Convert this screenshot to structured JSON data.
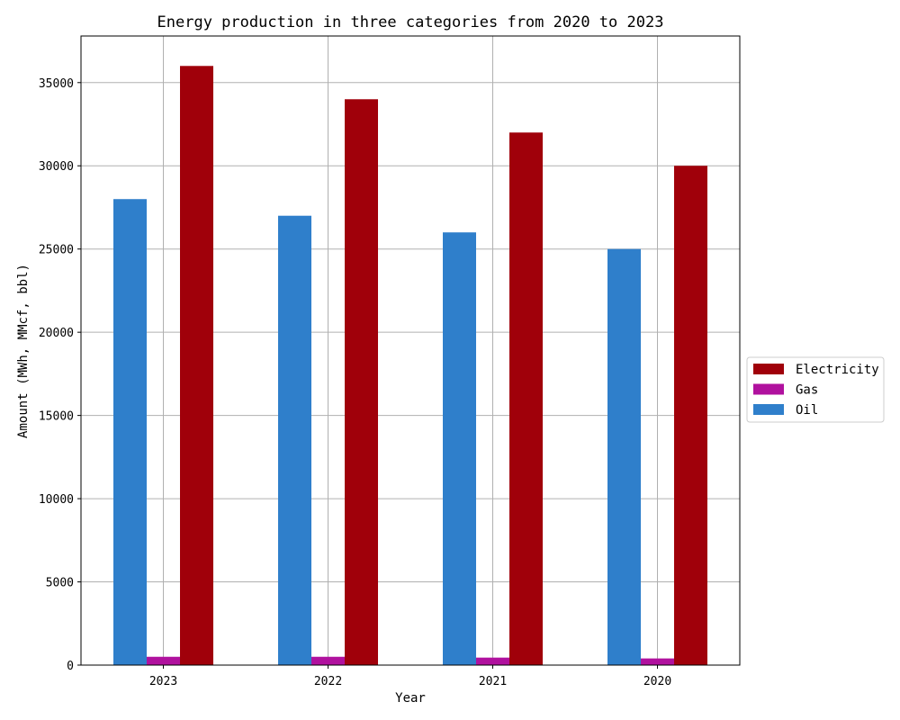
{
  "chart_data": {
    "type": "bar",
    "title": "Energy production in three categories from 2020 to 2023",
    "xlabel": "Year",
    "ylabel": "Amount (MWh, MMcf, bbl)",
    "categories": [
      "2023",
      "2022",
      "2021",
      "2020"
    ],
    "series": [
      {
        "name": "Oil",
        "color": "#2f7fcb",
        "values": [
          28000,
          27000,
          26000,
          25000
        ]
      },
      {
        "name": "Gas",
        "color": "#b0119e",
        "values": [
          500,
          500,
          450,
          400
        ]
      },
      {
        "name": "Electricity",
        "color": "#a0000a",
        "values": [
          36000,
          34000,
          32000,
          30000
        ]
      }
    ],
    "ylim": [
      0,
      37800
    ],
    "yticks": [
      0,
      5000,
      10000,
      15000,
      20000,
      25000,
      30000,
      35000
    ],
    "grid": true,
    "legend": {
      "placement": "right-outside",
      "order": [
        "Electricity",
        "Gas",
        "Oil"
      ]
    }
  }
}
